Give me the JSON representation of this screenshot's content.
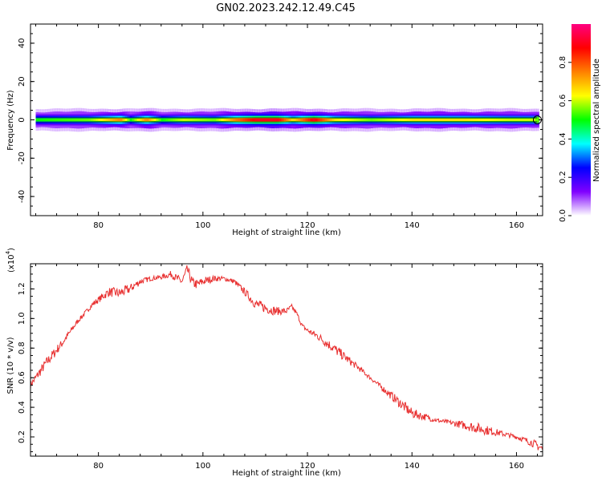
{
  "title": "GN02.2023.242.12.49.C45",
  "chart_data": [
    {
      "type": "heatmap",
      "xlabel": "Height of straight line (km)",
      "ylabel": "Frequency (Hz)",
      "xlim": [
        67,
        165
      ],
      "ylim": [
        -50,
        50
      ],
      "xticks": [
        80,
        100,
        120,
        140,
        160
      ],
      "yticks": [
        40,
        20,
        0,
        -20,
        -40
      ],
      "xtick_labels": [
        "80",
        "100",
        "120",
        "140",
        "160"
      ],
      "ytick_labels": [
        "40",
        "20",
        "0",
        "-20",
        "-40"
      ],
      "colorbar": {
        "label": "Normalized spectral amplitude",
        "range": [
          0,
          1
        ],
        "ticks": [
          0.0,
          0.2,
          0.4,
          0.6,
          0.8
        ],
        "tick_labels": [
          "0.0",
          "0.2",
          "0.4",
          "0.6",
          "0.8"
        ],
        "colors": [
          "#ffffff",
          "#8000ff",
          "#0000ff",
          "#00ffff",
          "#00ff00",
          "#ffff00",
          "#ff8000",
          "#ff0000",
          "#ff0080"
        ]
      },
      "band": {
        "center_hz": 0,
        "amplitude_profile": [
          {
            "x": 68,
            "v": 0.5
          },
          {
            "x": 78,
            "v": 0.55
          },
          {
            "x": 84,
            "v": 0.75
          },
          {
            "x": 86,
            "v": 0.5
          },
          {
            "x": 89,
            "v": 0.75
          },
          {
            "x": 92,
            "v": 0.5
          },
          {
            "x": 96,
            "v": 0.6
          },
          {
            "x": 102,
            "v": 0.55
          },
          {
            "x": 106,
            "v": 0.75
          },
          {
            "x": 110,
            "v": 0.9
          },
          {
            "x": 114,
            "v": 0.9
          },
          {
            "x": 117,
            "v": 0.65
          },
          {
            "x": 121,
            "v": 0.9
          },
          {
            "x": 125,
            "v": 0.65
          },
          {
            "x": 132,
            "v": 0.55
          },
          {
            "x": 140,
            "v": 0.65
          },
          {
            "x": 150,
            "v": 0.65
          },
          {
            "x": 158,
            "v": 0.6
          },
          {
            "x": 164,
            "v": 0.6
          }
        ]
      }
    },
    {
      "type": "line",
      "xlabel": "Height of straight line (km)",
      "ylabel": "SNR (10 * v/v)",
      "multiplier": "(x10",
      "multiplier_exp": "4",
      "multiplier_close": ")",
      "xlim": [
        67,
        165
      ],
      "ylim": [
        0.07,
        1.37
      ],
      "xticks": [
        80,
        100,
        120,
        140,
        160
      ],
      "yticks": [
        0.2,
        0.4,
        0.6,
        0.8,
        1.0,
        1.2
      ],
      "xtick_labels": [
        "80",
        "100",
        "120",
        "140",
        "160"
      ],
      "ytick_labels": [
        "0.2",
        "0.4",
        "0.6",
        "0.8",
        "1.0",
        "1.2"
      ],
      "color": "#e83030",
      "series": [
        {
          "x": [
            67,
            70,
            73,
            76,
            79,
            82,
            84,
            86,
            88,
            90,
            92,
            94,
            95,
            96,
            97,
            98,
            99,
            100,
            102,
            104,
            106,
            108,
            110,
            112,
            114,
            116,
            117,
            118,
            119,
            120,
            122,
            125,
            130,
            135,
            138,
            140,
            145,
            150,
            155,
            160,
            163,
            165
          ],
          "y": [
            0.55,
            0.7,
            0.83,
            0.98,
            1.1,
            1.18,
            1.17,
            1.2,
            1.25,
            1.27,
            1.28,
            1.3,
            1.27,
            1.25,
            1.33,
            1.24,
            1.23,
            1.25,
            1.27,
            1.27,
            1.25,
            1.18,
            1.1,
            1.07,
            1.05,
            1.05,
            1.08,
            1.03,
            0.95,
            0.92,
            0.88,
            0.8,
            0.66,
            0.51,
            0.42,
            0.36,
            0.31,
            0.28,
            0.24,
            0.2,
            0.16,
            0.12
          ]
        }
      ]
    }
  ]
}
